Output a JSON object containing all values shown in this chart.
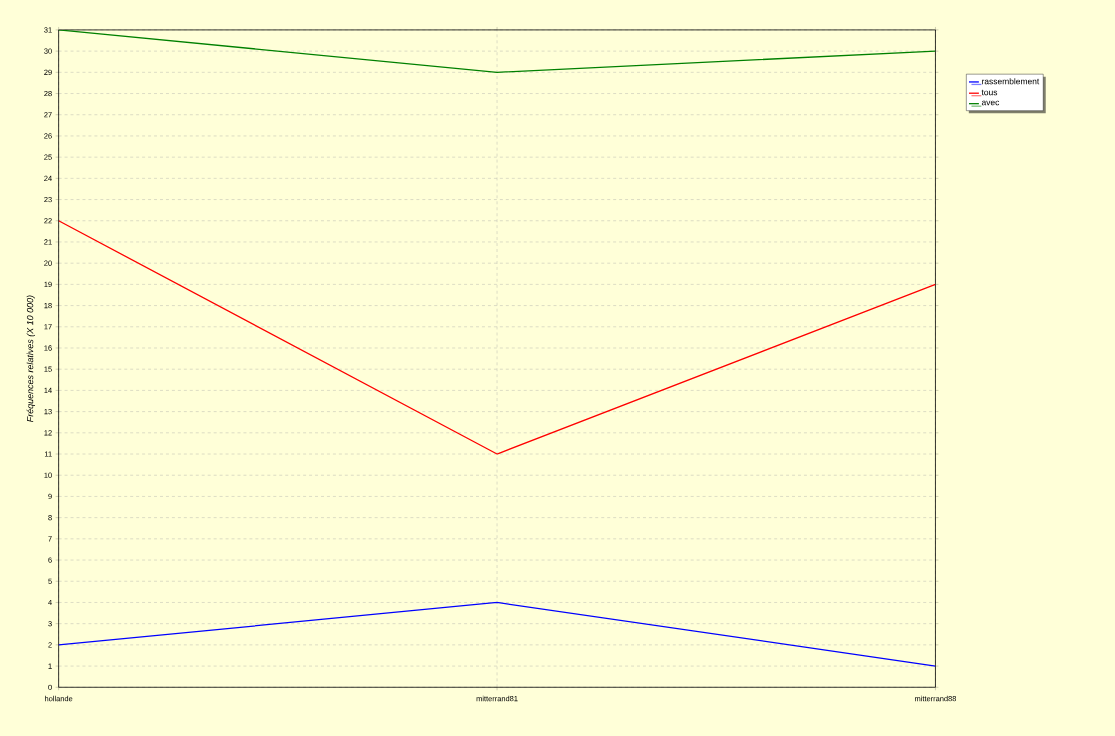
{
  "chart_data": {
    "type": "line",
    "ylabel": "Fréquences relatives (X 10 000)",
    "categories": [
      "hollande",
      "mitterrand81",
      "mitterrand88"
    ],
    "series": [
      {
        "name": "rassemblement",
        "color": "#0000ff",
        "values": [
          2,
          4,
          1
        ]
      },
      {
        "name": "tous",
        "color": "#ff0000",
        "values": [
          22,
          11,
          19
        ]
      },
      {
        "name": "avec",
        "color": "#008000",
        "values": [
          31,
          29,
          30
        ]
      }
    ],
    "ylim": [
      0,
      31
    ],
    "yticks": [
      0,
      1,
      2,
      3,
      4,
      5,
      6,
      7,
      8,
      9,
      10,
      11,
      12,
      13,
      14,
      15,
      16,
      17,
      18,
      19,
      20,
      21,
      22,
      23,
      24,
      25,
      26,
      27,
      28,
      29,
      30,
      31
    ],
    "grid": true,
    "legend": "top right",
    "marker": "none",
    "line_style": "solid"
  }
}
